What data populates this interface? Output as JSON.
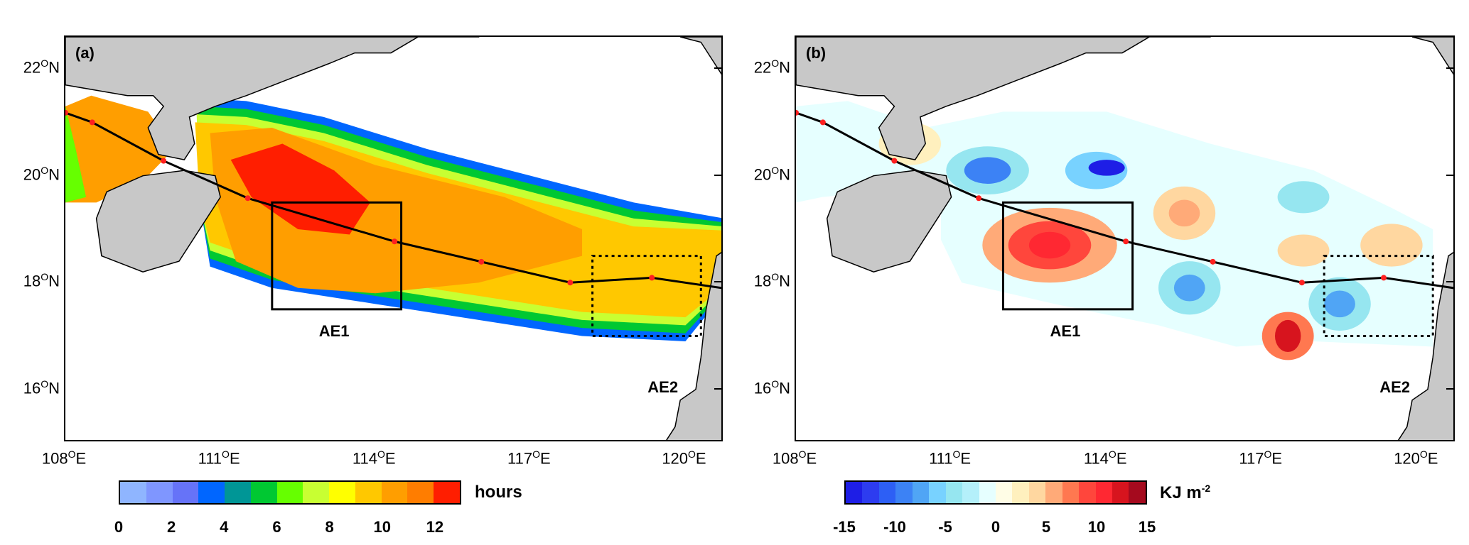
{
  "panels": [
    {
      "label": "(a)",
      "box_labels": [
        "AE1",
        "AE2"
      ]
    },
    {
      "label": "(b)",
      "box_labels": [
        "AE1",
        "AE2"
      ]
    }
  ],
  "axes": {
    "lat_ticks": [
      {
        "value": 22,
        "label": "22",
        "suffix": "N"
      },
      {
        "value": 20,
        "label": "20",
        "suffix": "N"
      },
      {
        "value": 18,
        "label": "18",
        "suffix": "N"
      },
      {
        "value": 16,
        "label": "16",
        "suffix": "N"
      }
    ],
    "lon_ticks": [
      {
        "value": 108,
        "label": "108",
        "suffix": "E"
      },
      {
        "value": 111,
        "label": "111",
        "suffix": "E"
      },
      {
        "value": 114,
        "label": "114",
        "suffix": "E"
      },
      {
        "value": 117,
        "label": "117",
        "suffix": "E"
      },
      {
        "value": 120,
        "label": "120",
        "suffix": "E"
      }
    ],
    "degree_symbol": "O",
    "lon_range": [
      108,
      120.75
    ],
    "lat_range": [
      15,
      22.6
    ]
  },
  "track": [
    [
      108,
      21.18
    ],
    [
      108.52,
      21.0
    ],
    [
      109.9,
      20.28
    ],
    [
      111.53,
      19.58
    ],
    [
      114.37,
      18.77
    ],
    [
      116.05,
      18.39
    ],
    [
      117.77,
      18.0
    ],
    [
      119.35,
      18.09
    ],
    [
      120.76,
      17.89
    ]
  ],
  "boxes": {
    "AE1": {
      "lon": [
        112,
        114.5
      ],
      "lat": [
        17.5,
        19.5
      ],
      "style": "solid"
    },
    "AE2": {
      "lon": [
        118.2,
        120.3
      ],
      "lat": [
        17,
        18.5
      ],
      "style": "dotted"
    }
  },
  "colorbars": [
    {
      "unit": "hours",
      "min": 0,
      "max": 13,
      "ticks": [
        "0",
        "2",
        "4",
        "6",
        "8",
        "10",
        "12"
      ],
      "tick_values": [
        0,
        2,
        4,
        6,
        8,
        10,
        12
      ],
      "colors": [
        "#8fb5ff",
        "#7f96ff",
        "#6673f8",
        "#0066ff",
        "#009696",
        "#00c832",
        "#66ff00",
        "#c8ff32",
        "#ffff00",
        "#ffc800",
        "#ff9e00",
        "#ff7d00",
        "#ff1e00"
      ]
    },
    {
      "unit": "KJ m",
      "unit_sup": "-2",
      "min": -15,
      "max": 15,
      "ticks": [
        "-15",
        "-10",
        "-5",
        "0",
        "5",
        "10",
        "15"
      ],
      "tick_values": [
        -15,
        -10,
        -5,
        0,
        5,
        10,
        15
      ],
      "colors": [
        "#1e1ee6",
        "#2d3cf0",
        "#2d5ff5",
        "#3c82f5",
        "#50a5f5",
        "#78d2ff",
        "#96e6f0",
        "#b4f0fa",
        "#e6ffff",
        "#fffde6",
        "#fff0be",
        "#ffd7a0",
        "#ffaa78",
        "#ff7850",
        "#ff463c",
        "#ff2832",
        "#d7141e",
        "#a50a1e"
      ]
    }
  ],
  "colors": {
    "land": "#c8c8c8",
    "track": "#000000",
    "track_points": "#ff2020"
  }
}
